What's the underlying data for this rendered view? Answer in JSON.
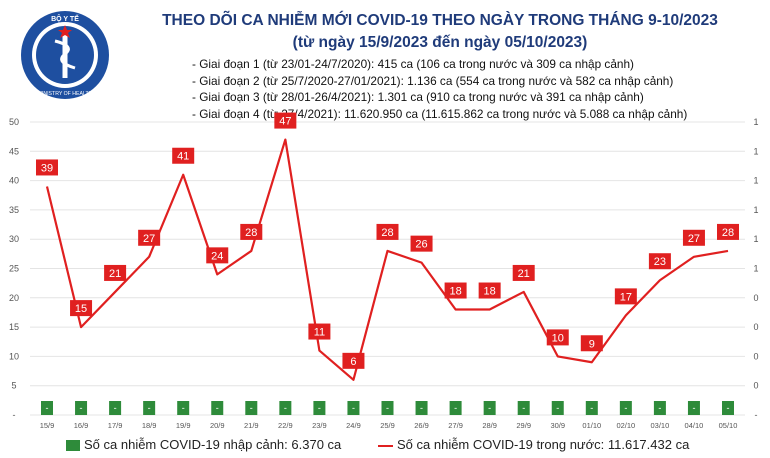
{
  "header": {
    "title": "THEO DÕI CA NHIỄM MỚI COVID-19 THEO NGÀY TRONG THÁNG 9-10/2023",
    "subtitle": "(từ ngày 15/9/2023 đến ngày 05/10/2023)",
    "logo_text_top": "BỘ Y TẾ",
    "logo_text_bottom": "MINISTRY OF HEALTH"
  },
  "phases": [
    "- Giai đoạn 1 (từ 23/01-24/7/2020): 415 ca (106 ca trong nước và 309 ca nhập cảnh)",
    "- Giai đoạn 2 (từ 25/7/2020-27/01/2021): 1.136 ca (554 ca trong nước và 582 ca nhập cảnh)",
    "- Giai đoạn 3 (từ 28/01-26/4/2021): 1.301 ca (910 ca trong nước và 391 ca nhập cảnh)",
    "- Giai đoạn 4 (từ 27/4/2021): 11.620.950 ca (11.615.862 ca trong nước và 5.088 ca nhập cảnh)"
  ],
  "legend": {
    "imported": "Số ca nhiễm COVID-19 nhập cảnh: 6.370 ca",
    "domestic": "Số ca nhiễm COVID-19 trong nước: 11.617.432 ca"
  },
  "colors": {
    "title": "#1f3b7a",
    "line": "#e02020",
    "bar": "#2e8b3a",
    "grid": "#e4e4e4"
  },
  "chart_data": {
    "type": "line",
    "categories": [
      "15/9",
      "16/9",
      "17/9",
      "18/9",
      "19/9",
      "20/9",
      "21/9",
      "22/9",
      "23/9",
      "24/9",
      "25/9",
      "26/9",
      "27/9",
      "28/9",
      "29/9",
      "30/9",
      "01/10",
      "02/10",
      "03/10",
      "04/10",
      "05/10"
    ],
    "series": [
      {
        "name": "Số ca nhiễm COVID-19 trong nước",
        "values": [
          39,
          15,
          21,
          27,
          41,
          24,
          28,
          47,
          11,
          6,
          28,
          26,
          18,
          18,
          21,
          10,
          9,
          17,
          23,
          27,
          28
        ]
      },
      {
        "name": "Số ca nhiễm COVID-19 nhập cảnh",
        "labels": [
          "-",
          "-",
          "-",
          "-",
          "-",
          "-",
          "-",
          "-",
          "-",
          "-",
          "-",
          "-",
          "-",
          "-",
          "-",
          "-",
          "-",
          "-",
          "-",
          "-",
          "-"
        ]
      }
    ],
    "ylim": [
      0,
      50
    ],
    "left_ticks": [
      "50",
      "45",
      "40",
      "35",
      "30",
      "25",
      "20",
      "15",
      "10",
      "5",
      "-"
    ],
    "right_ticks": [
      "1",
      "1",
      "1",
      "1",
      "1",
      "1",
      "0",
      "0",
      "0",
      "0",
      "-"
    ]
  }
}
